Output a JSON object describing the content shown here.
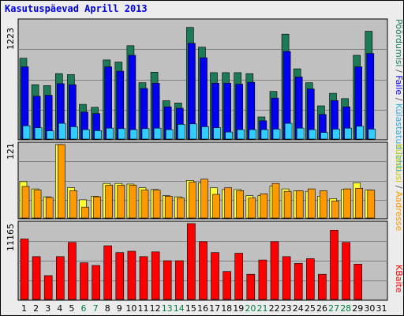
{
  "title": "Kasutuspäevad Aprill 2013",
  "colors": {
    "background": "#ececec",
    "panel": "#c0c0c0",
    "pages": "#1d7a56",
    "files": "#0000ee",
    "hits": "#33ccff",
    "visits": "#ffff33",
    "visits_edge": "#999900",
    "sites": "#ff9900",
    "kbytes": "#ff0000",
    "weekday_label": "#000000",
    "weekend_label": "#008040"
  },
  "chart_data": [
    {
      "type": "bar",
      "title": "Kasutuspäevad Aprill 2013",
      "categories": [
        "1",
        "2",
        "3",
        "4",
        "5",
        "6",
        "7",
        "8",
        "9",
        "10",
        "11",
        "12",
        "13",
        "14",
        "15",
        "16",
        "17",
        "18",
        "19",
        "20",
        "21",
        "22",
        "23",
        "24",
        "25",
        "26",
        "27",
        "28",
        "29",
        "30",
        "31"
      ],
      "ymax_label": "1223",
      "ylim": [
        0,
        1223
      ],
      "legend_label_pages": "Pöördumisi",
      "legend_label_files": "Faile",
      "legend_label_hits": "Külastatud lehti",
      "series": [
        {
          "name": "Pöördumisi",
          "color": "#1d7a56",
          "values": [
            840,
            565,
            555,
            680,
            670,
            360,
            330,
            822,
            800,
            970,
            585,
            695,
            398,
            375,
            1160,
            955,
            690,
            690,
            690,
            680,
            230,
            495,
            1090,
            730,
            585,
            345,
            475,
            420,
            870,
            1120,
            0
          ]
        },
        {
          "name": "Faile",
          "color": "#0000ee",
          "values": [
            750,
            445,
            455,
            575,
            565,
            280,
            265,
            750,
            705,
            870,
            525,
            580,
            335,
            320,
            995,
            845,
            580,
            580,
            570,
            590,
            190,
            425,
            910,
            645,
            520,
            255,
            400,
            335,
            750,
            890,
            0
          ]
        },
        {
          "name": "Külastatud lehti",
          "color": "#33ccff",
          "values": [
            138,
            118,
            85,
            163,
            128,
            98,
            88,
            113,
            108,
            98,
            108,
            113,
            98,
            153,
            158,
            128,
            118,
            73,
            98,
            98,
            98,
            103,
            163,
            113,
            98,
            68,
            103,
            113,
            133,
            103,
            0
          ]
        }
      ]
    },
    {
      "type": "bar",
      "ymax_label": "121",
      "ylim": [
        0,
        121
      ],
      "legend_label_visits": "Külastusi",
      "legend_label_sites": "Aadresse",
      "series": [
        {
          "name": "Külastusi",
          "color": "#ffff33",
          "values": [
            60,
            48,
            35,
            121,
            50,
            30,
            36,
            57,
            57,
            56,
            50,
            47,
            37,
            35,
            62,
            58,
            50,
            47,
            47,
            37,
            37,
            53,
            48,
            45,
            44,
            36,
            32,
            47,
            58,
            46,
            0
          ]
        },
        {
          "name": "Aadresse",
          "color": "#ff9900",
          "values": [
            52,
            46,
            34,
            121,
            45,
            18,
            35,
            54,
            54,
            54,
            46,
            46,
            36,
            33,
            59,
            64,
            39,
            50,
            45,
            33,
            40,
            57,
            44,
            45,
            48,
            45,
            28,
            48,
            49,
            46,
            0
          ]
        }
      ]
    },
    {
      "type": "bar",
      "ymax_label": "11165",
      "ylim": [
        0,
        11165
      ],
      "legend_label_kbytes": "KBaite",
      "series": [
        {
          "name": "KBaite",
          "color": "#ff0000",
          "values": [
            8900,
            6300,
            3500,
            6300,
            8400,
            5400,
            5000,
            7900,
            6900,
            7100,
            6300,
            7000,
            5700,
            5700,
            11165,
            8500,
            6900,
            4100,
            6800,
            3700,
            5800,
            8500,
            6300,
            5300,
            6000,
            3700,
            10200,
            8400,
            5200,
            0,
            0
          ]
        }
      ]
    }
  ]
}
